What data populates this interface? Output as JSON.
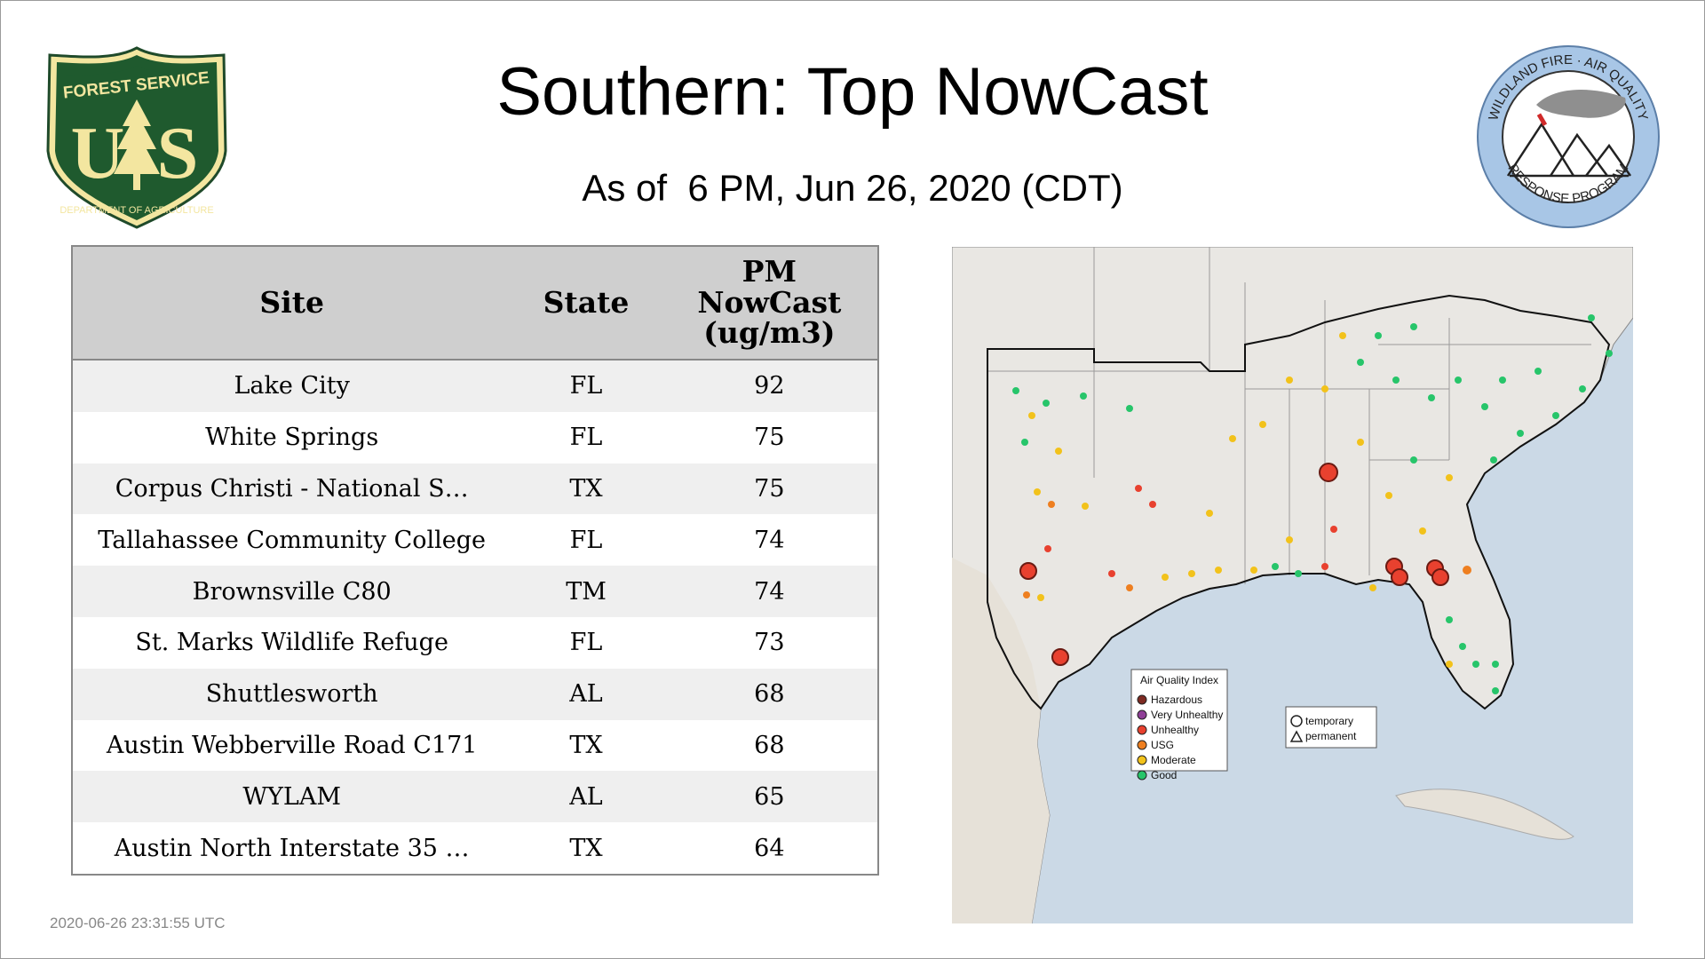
{
  "header": {
    "title": "Southern: Top NowCast",
    "subtitle": "As of  6 PM, Jun 26, 2020 (CDT)"
  },
  "logos": {
    "forest_service": {
      "top_text": "FOREST SERVICE",
      "letters": "US",
      "bottom_text": "DEPARTMENT OF AGRICULTURE"
    },
    "wildland_fire": {
      "top_text": "WILDLAND FIRE · AIR QUALITY",
      "bottom_text": "RESPONSE PROGRAM"
    }
  },
  "table": {
    "headers": {
      "site": "Site",
      "state": "State",
      "pm_line1": "PM",
      "pm_line2": "NowCast",
      "pm_line3": "(ug/m3)"
    },
    "rows": [
      {
        "site": "Lake City",
        "state": "FL",
        "value": "92"
      },
      {
        "site": "White Springs",
        "state": "FL",
        "value": "75"
      },
      {
        "site": "Corpus Christi - National S…",
        "state": "TX",
        "value": "75"
      },
      {
        "site": "Tallahassee Community College",
        "state": "FL",
        "value": "74"
      },
      {
        "site": "Brownsville C80",
        "state": "TM",
        "value": "74"
      },
      {
        "site": "St. Marks Wildlife Refuge",
        "state": "FL",
        "value": "73"
      },
      {
        "site": "Shuttlesworth",
        "state": "AL",
        "value": "68"
      },
      {
        "site": "Austin Webberville Road C171",
        "state": "TX",
        "value": "68"
      },
      {
        "site": "WYLAM",
        "state": "AL",
        "value": "65"
      },
      {
        "site": "Austin North Interstate 35 …",
        "state": "TX",
        "value": "64"
      }
    ]
  },
  "map": {
    "legend": {
      "title": "Air Quality Index",
      "items": [
        {
          "label": "Hazardous",
          "color": "#7e2b22"
        },
        {
          "label": "Very Unhealthy",
          "color": "#8f3f97"
        },
        {
          "label": "Unhealthy",
          "color": "#e8412f"
        },
        {
          "label": "USG",
          "color": "#ee7f20"
        },
        {
          "label": "Moderate",
          "color": "#f2c21b"
        },
        {
          "label": "Good",
          "color": "#27c56a"
        }
      ]
    },
    "shape_legend": {
      "temporary": "temporary",
      "permanent": "permanent"
    }
  },
  "timestamp": "2020-06-26 23:31:55 UTC",
  "colors": {
    "header_bg": "#cfcfcf",
    "row_alt": "#efefef",
    "ocean": "#cbd9e6",
    "land": "#e9e7e3"
  }
}
